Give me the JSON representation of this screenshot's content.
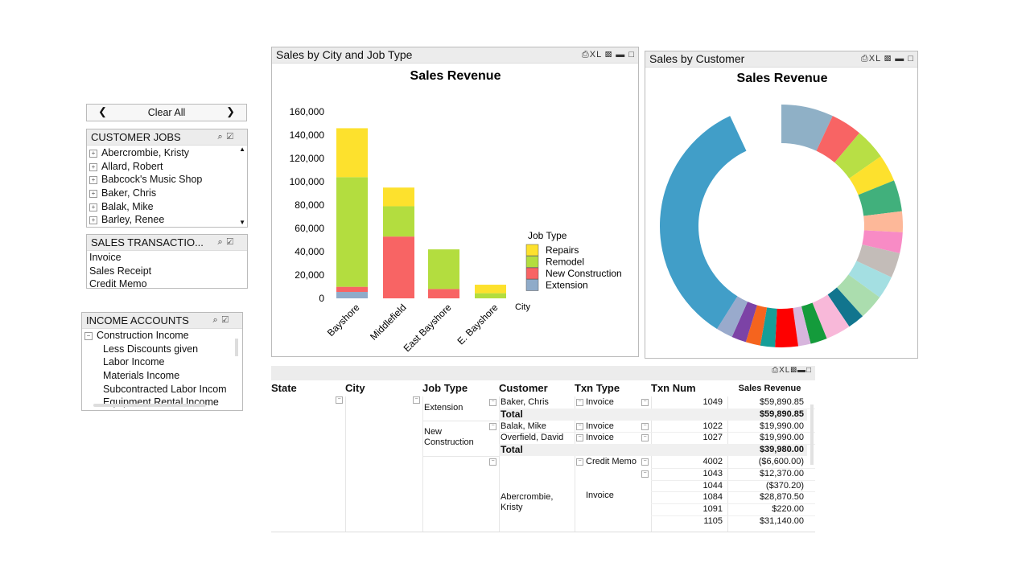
{
  "filters": {
    "clear_all": "Clear All",
    "customer_jobs": {
      "title": "CUSTOMER JOBS",
      "items": [
        "Abercrombie, Kristy",
        "Allard, Robert",
        "Babcock's Music Shop",
        "Baker, Chris",
        "Balak, Mike",
        "Barley, Renee"
      ]
    },
    "sales_transactions": {
      "title": "SALES TRANSACTIO...",
      "items": [
        "Invoice",
        "Sales Receipt",
        "Credit Memo"
      ]
    },
    "income_accounts": {
      "title": "INCOME ACCOUNTS",
      "parent": "Construction Income",
      "items": [
        "Less Discounts given",
        "Labor Income",
        "Materials Income",
        "Subcontracted Labor Incom",
        "Equipment Rental Income"
      ]
    }
  },
  "panel_tools": {
    "print": "⎙",
    "xl": "XL",
    "save": "💾",
    "minimize": "▬",
    "maximize": "☐"
  },
  "bar_panel": {
    "title": "Sales by City and Job Type"
  },
  "donut_panel": {
    "title": "Sales by Customer"
  },
  "chart_data": [
    {
      "type": "bar",
      "stacked": true,
      "title": "Sales Revenue",
      "xlabel": "City",
      "ylabel": "",
      "ylim": [
        0,
        160000
      ],
      "yticks": [
        "0",
        "20,000",
        "40,000",
        "60,000",
        "80,000",
        "100,000",
        "120,000",
        "140,000",
        "160,000"
      ],
      "categories": [
        "Bayshore",
        "Middlefield",
        "East Bayshore",
        "E. Bayshore"
      ],
      "legend_title": "Job Type",
      "legend_position": "right",
      "series": [
        {
          "name": "Extension",
          "color": "#8fabc9",
          "values": [
            5500,
            0,
            0,
            0
          ]
        },
        {
          "name": "New Construction",
          "color": "#f86464",
          "values": [
            4400,
            53000,
            8000,
            0
          ]
        },
        {
          "name": "Remodel",
          "color": "#b3dd3f",
          "values": [
            94000,
            26000,
            34000,
            4400
          ]
        },
        {
          "name": "Repairs",
          "color": "#fde12d",
          "values": [
            42000,
            16000,
            0,
            7300
          ]
        }
      ]
    },
    {
      "type": "pie",
      "donut": true,
      "title": "Sales Revenue",
      "values": [
        25,
        15,
        15,
        13,
        15,
        10,
        10,
        12,
        11,
        12,
        8,
        12,
        8,
        6,
        11,
        7,
        7,
        7,
        8,
        123
      ],
      "colors": [
        "#8fb0c6",
        "#f86464",
        "#b8df45",
        "#fde12d",
        "#41b07c",
        "#fdb899",
        "#f88bc5",
        "#c3bcb8",
        "#a4dfe2",
        "#abddae",
        "#11758e",
        "#f8b8d9",
        "#149b3b",
        "#d7b5dd",
        "#fe0000",
        "#169e98",
        "#f5641e",
        "#7c43a6",
        "#99aacc",
        "#419ec8"
      ]
    }
  ],
  "table": {
    "headers": [
      "State",
      "City",
      "Job Type",
      "Customer",
      "Txn Type",
      "Txn Num",
      "Sales Revenue"
    ],
    "total_label": "Total",
    "groups": [
      {
        "job_type": "Extension",
        "rows": [
          {
            "customer": "Baker, Chris",
            "txn_type": "Invoice",
            "num": "1049",
            "rev": "$59,890.85"
          }
        ],
        "total": "$59,890.85"
      },
      {
        "job_type": "New Construction",
        "rows": [
          {
            "customer": "Balak, Mike",
            "txn_type": "Invoice",
            "num": "1022",
            "rev": "$19,990.00"
          },
          {
            "customer": "Overfield, David",
            "txn_type": "Invoice",
            "num": "1027",
            "rev": "$19,990.00"
          }
        ],
        "total": "$39,980.00"
      },
      {
        "job_type": "",
        "customer": "Abercrombie, Kristy",
        "credit": {
          "txn_type": "Credit Memo",
          "num": "4002",
          "rev": "($6,600.00)"
        },
        "invoice_type": "Invoice",
        "rows": [
          {
            "num": "1043",
            "rev": "$12,370.00"
          },
          {
            "num": "1044",
            "rev": "($370.20)"
          },
          {
            "num": "1084",
            "rev": "$28,870.50"
          },
          {
            "num": "1091",
            "rev": "$220.00"
          },
          {
            "num": "1105",
            "rev": "$31,140.00"
          }
        ]
      }
    ]
  }
}
